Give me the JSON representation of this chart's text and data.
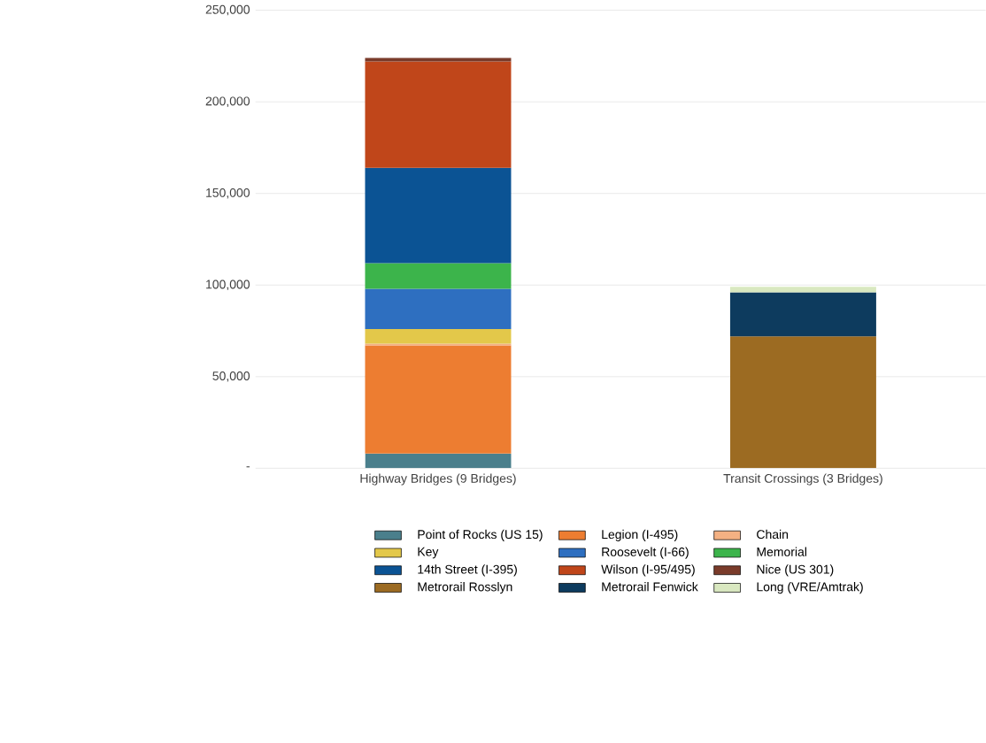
{
  "chart_data": {
    "type": "bar",
    "stacked": true,
    "grid": "y",
    "legend": "bottom",
    "categories": [
      "Highway Bridges (9 Bridges)",
      "Transit Crossings (3 Bridges)"
    ],
    "ylim": [
      0,
      250000
    ],
    "yticks": [
      {
        "value": 0,
        "label": "-"
      },
      {
        "value": 50000,
        "label": "50,000"
      },
      {
        "value": 100000,
        "label": "100,000"
      },
      {
        "value": 150000,
        "label": "150,000"
      },
      {
        "value": 200000,
        "label": "200,000"
      },
      {
        "value": 250000,
        "label": "250,000"
      }
    ],
    "series": [
      {
        "name": "Point of Rocks (US 15)",
        "color": "#4a7f8c",
        "values": [
          8000,
          null
        ]
      },
      {
        "name": "Legion (I-495)",
        "color": "#ed7d31",
        "values": [
          59000,
          null
        ]
      },
      {
        "name": "Chain",
        "color": "#f4b183",
        "values": [
          1000,
          null
        ]
      },
      {
        "name": "Key",
        "color": "#e3c84a",
        "values": [
          8000,
          null
        ]
      },
      {
        "name": "Roosevelt (I-66)",
        "color": "#2e6fc0",
        "values": [
          22000,
          null
        ]
      },
      {
        "name": "Memorial",
        "color": "#3cb44b",
        "values": [
          14000,
          null
        ]
      },
      {
        "name": "14th Street (I-395)",
        "color": "#0b5394",
        "values": [
          52000,
          null
        ]
      },
      {
        "name": "Wilson (I-95/495)",
        "color": "#c0461a",
        "values": [
          58000,
          null
        ]
      },
      {
        "name": "Nice (US 301)",
        "color": "#7a3b2a",
        "values": [
          2000,
          null
        ]
      },
      {
        "name": "Metrorail Rosslyn",
        "color": "#9c6b22",
        "values": [
          null,
          72000
        ]
      },
      {
        "name": "Metrorail Fenwick",
        "color": "#0d3b5e",
        "values": [
          null,
          24000
        ]
      },
      {
        "name": "Long (VRE/Amtrak)",
        "color": "#d9e8c0",
        "values": [
          null,
          3000
        ]
      }
    ]
  }
}
